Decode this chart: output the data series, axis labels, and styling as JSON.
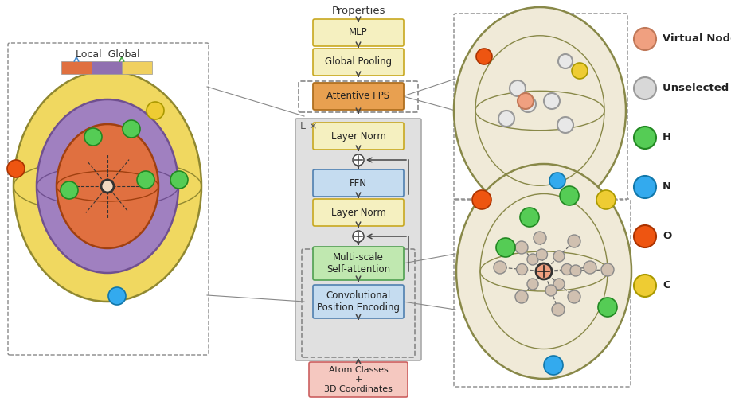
{
  "bg_color": "#ffffff",
  "legend_items": [
    {
      "label": "Virtual Node",
      "color": "#f0a080",
      "edge": "#c07858"
    },
    {
      "label": "Unselected Node",
      "color": "#d8d8d8",
      "edge": "#999999"
    },
    {
      "label": "H",
      "color": "#55cc55",
      "edge": "#228822"
    },
    {
      "label": "N",
      "color": "#33aaee",
      "edge": "#1177aa"
    },
    {
      "label": "O",
      "color": "#ee5511",
      "edge": "#aa3300"
    },
    {
      "label": "C",
      "color": "#eecc33",
      "edge": "#aa9900"
    }
  ],
  "yellow_box": "#f5f0c0",
  "yellow_edge": "#c8a820",
  "blue_box": "#c5dcf0",
  "blue_edge": "#5080b0",
  "green_box": "#c0e8b0",
  "green_edge": "#50a050",
  "orange_box": "#e8a050",
  "orange_edge": "#b07020",
  "pink_box": "#f5c8c0",
  "pink_edge": "#cc6060",
  "gray_bg": "#e0e0e0",
  "gray_edge": "#aaaaaa"
}
